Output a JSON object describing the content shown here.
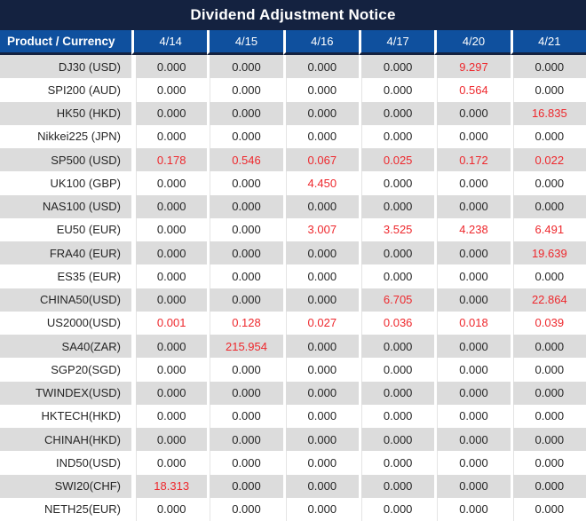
{
  "title": "Dividend Adjustment Notice",
  "colors": {
    "title-bar-bg": "#142240",
    "header-bg": "#0F509E",
    "stripe": "#DCDCDC",
    "red": "#EE282D",
    "text": "#262626"
  },
  "table": {
    "product_header": "Product / Currency",
    "date_headers": [
      "4/14",
      "4/15",
      "4/16",
      "4/17",
      "4/20",
      "4/21"
    ],
    "rows": [
      {
        "product": "DJ30 (USD)",
        "values": [
          "0.000",
          "0.000",
          "0.000",
          "0.000",
          "9.297",
          "0.000"
        ],
        "red": [
          false,
          false,
          false,
          false,
          true,
          false
        ]
      },
      {
        "product": "SPI200 (AUD)",
        "values": [
          "0.000",
          "0.000",
          "0.000",
          "0.000",
          "0.564",
          "0.000"
        ],
        "red": [
          false,
          false,
          false,
          false,
          true,
          false
        ]
      },
      {
        "product": "HK50 (HKD)",
        "values": [
          "0.000",
          "0.000",
          "0.000",
          "0.000",
          "0.000",
          "16.835"
        ],
        "red": [
          false,
          false,
          false,
          false,
          false,
          true
        ]
      },
      {
        "product": "Nikkei225 (JPN)",
        "values": [
          "0.000",
          "0.000",
          "0.000",
          "0.000",
          "0.000",
          "0.000"
        ],
        "red": [
          false,
          false,
          false,
          false,
          false,
          false
        ]
      },
      {
        "product": "SP500 (USD)",
        "values": [
          "0.178",
          "0.546",
          "0.067",
          "0.025",
          "0.172",
          "0.022"
        ],
        "red": [
          true,
          true,
          true,
          true,
          true,
          true
        ]
      },
      {
        "product": "UK100 (GBP)",
        "values": [
          "0.000",
          "0.000",
          "4.450",
          "0.000",
          "0.000",
          "0.000"
        ],
        "red": [
          false,
          false,
          true,
          false,
          false,
          false
        ]
      },
      {
        "product": "NAS100 (USD)",
        "values": [
          "0.000",
          "0.000",
          "0.000",
          "0.000",
          "0.000",
          "0.000"
        ],
        "red": [
          false,
          false,
          false,
          false,
          false,
          false
        ]
      },
      {
        "product": "EU50 (EUR)",
        "values": [
          "0.000",
          "0.000",
          "3.007",
          "3.525",
          "4.238",
          "6.491"
        ],
        "red": [
          false,
          false,
          true,
          true,
          true,
          true
        ]
      },
      {
        "product": "FRA40 (EUR)",
        "values": [
          "0.000",
          "0.000",
          "0.000",
          "0.000",
          "0.000",
          "19.639"
        ],
        "red": [
          false,
          false,
          false,
          false,
          false,
          true
        ]
      },
      {
        "product": "ES35 (EUR)",
        "values": [
          "0.000",
          "0.000",
          "0.000",
          "0.000",
          "0.000",
          "0.000"
        ],
        "red": [
          false,
          false,
          false,
          false,
          false,
          false
        ]
      },
      {
        "product": "CHINA50(USD)",
        "values": [
          "0.000",
          "0.000",
          "0.000",
          "6.705",
          "0.000",
          "22.864"
        ],
        "red": [
          false,
          false,
          false,
          true,
          false,
          true
        ]
      },
      {
        "product": "US2000(USD)",
        "values": [
          "0.001",
          "0.128",
          "0.027",
          "0.036",
          "0.018",
          "0.039"
        ],
        "red": [
          true,
          true,
          true,
          true,
          true,
          true
        ]
      },
      {
        "product": "SA40(ZAR)",
        "values": [
          "0.000",
          "215.954",
          "0.000",
          "0.000",
          "0.000",
          "0.000"
        ],
        "red": [
          false,
          true,
          false,
          false,
          false,
          false
        ]
      },
      {
        "product": "SGP20(SGD)",
        "values": [
          "0.000",
          "0.000",
          "0.000",
          "0.000",
          "0.000",
          "0.000"
        ],
        "red": [
          false,
          false,
          false,
          false,
          false,
          false
        ]
      },
      {
        "product": "TWINDEX(USD)",
        "values": [
          "0.000",
          "0.000",
          "0.000",
          "0.000",
          "0.000",
          "0.000"
        ],
        "red": [
          false,
          false,
          false,
          false,
          false,
          false
        ]
      },
      {
        "product": "HKTECH(HKD)",
        "values": [
          "0.000",
          "0.000",
          "0.000",
          "0.000",
          "0.000",
          "0.000"
        ],
        "red": [
          false,
          false,
          false,
          false,
          false,
          false
        ]
      },
      {
        "product": "CHINAH(HKD)",
        "values": [
          "0.000",
          "0.000",
          "0.000",
          "0.000",
          "0.000",
          "0.000"
        ],
        "red": [
          false,
          false,
          false,
          false,
          false,
          false
        ]
      },
      {
        "product": "IND50(USD)",
        "values": [
          "0.000",
          "0.000",
          "0.000",
          "0.000",
          "0.000",
          "0.000"
        ],
        "red": [
          false,
          false,
          false,
          false,
          false,
          false
        ]
      },
      {
        "product": "SWI20(CHF)",
        "values": [
          "18.313",
          "0.000",
          "0.000",
          "0.000",
          "0.000",
          "0.000"
        ],
        "red": [
          true,
          false,
          false,
          false,
          false,
          false
        ]
      },
      {
        "product": "NETH25(EUR)",
        "values": [
          "0.000",
          "0.000",
          "0.000",
          "0.000",
          "0.000",
          "0.000"
        ],
        "red": [
          false,
          false,
          false,
          false,
          false,
          false
        ]
      }
    ]
  }
}
